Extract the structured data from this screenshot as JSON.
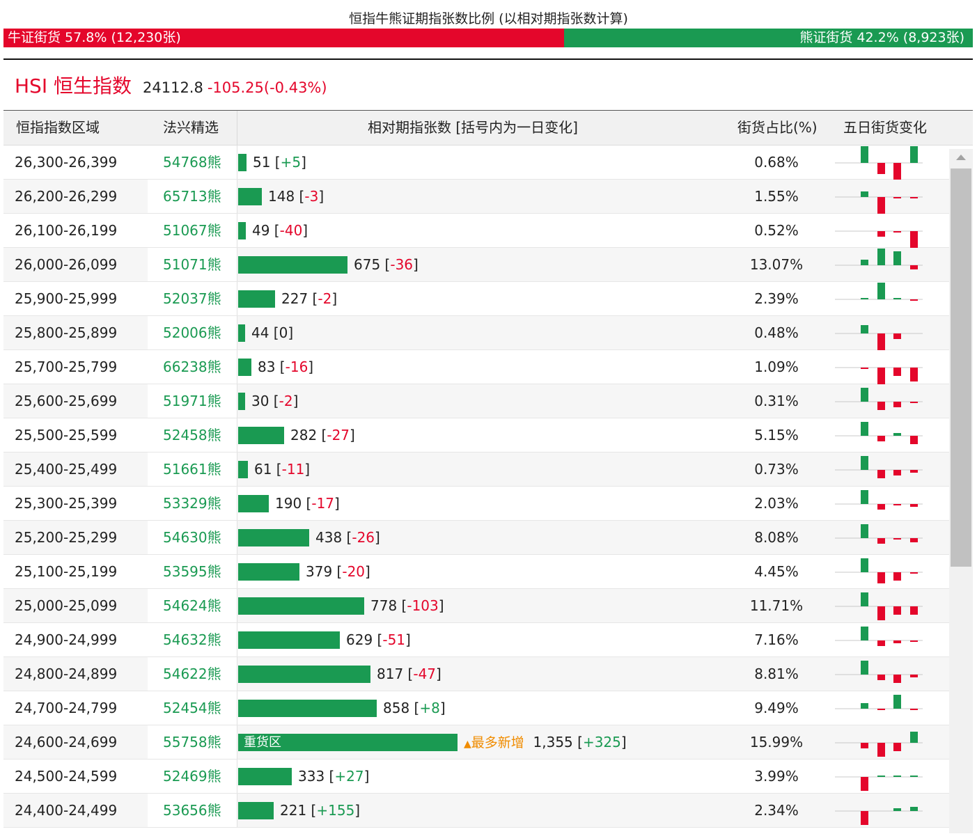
{
  "title": "恒指牛熊证期指张数比例 (以相对期指张数计算)",
  "ratio": {
    "bull_label": "牛证街货 57.8% (12,230张)",
    "bear_label": "熊证街货 42.2% (8,923张)",
    "bull_pct": 57.8,
    "bull_color": "#e4062b",
    "bear_color": "#1a9a52"
  },
  "index": {
    "name": "HSI 恒生指数",
    "price": "24112.8",
    "change": "-105.25(-0.43%)"
  },
  "table": {
    "headers": {
      "range": "恒指指数区域",
      "pick": "法兴精选",
      "contracts": "相对期指张数 [括号内为一日变化]",
      "share": "街货占比(%)",
      "five_day": "五日街货变化"
    },
    "max_contracts": 1355,
    "rows": [
      {
        "range": "26,300-26,399",
        "code": "54768熊",
        "contracts": 51,
        "contracts_text": "51",
        "delta": "+5",
        "share": "0.68%",
        "five_day": [
          3,
          0,
          -2,
          -3,
          3
        ]
      },
      {
        "range": "26,200-26,299",
        "code": "65713熊",
        "contracts": 148,
        "contracts_text": "148",
        "delta": "-3",
        "share": "1.55%",
        "five_day": [
          1,
          0,
          -3,
          -0.3,
          -0.3
        ]
      },
      {
        "range": "26,100-26,199",
        "code": "51067熊",
        "contracts": 49,
        "contracts_text": "49",
        "delta": "-40",
        "share": "0.52%",
        "five_day": [
          0,
          0,
          -1,
          -0.3,
          -3
        ]
      },
      {
        "range": "26,000-26,099",
        "code": "51071熊",
        "contracts": 675,
        "contracts_text": "675",
        "delta": "-36",
        "share": "13.07%",
        "five_day": [
          1,
          0,
          3,
          2.5,
          -0.8
        ]
      },
      {
        "range": "25,900-25,999",
        "code": "52037熊",
        "contracts": 227,
        "contracts_text": "227",
        "delta": "-2",
        "share": "2.39%",
        "five_day": [
          0.2,
          0,
          3,
          0.2,
          -0.2
        ]
      },
      {
        "range": "25,800-25,899",
        "code": "52006熊",
        "contracts": 44,
        "contracts_text": "44",
        "delta": "0",
        "share": "0.48%",
        "five_day": [
          1.5,
          0,
          -3,
          -1,
          0
        ]
      },
      {
        "range": "25,700-25,799",
        "code": "66238熊",
        "contracts": 83,
        "contracts_text": "83",
        "delta": "-16",
        "share": "1.09%",
        "five_day": [
          -0.3,
          0,
          -3,
          -1.5,
          -2.5
        ]
      },
      {
        "range": "25,600-25,699",
        "code": "51971熊",
        "contracts": 30,
        "contracts_text": "30",
        "delta": "-2",
        "share": "0.31%",
        "five_day": [
          2.5,
          0,
          -1.5,
          -1,
          -0.3
        ]
      },
      {
        "range": "25,500-25,599",
        "code": "52458熊",
        "contracts": 282,
        "contracts_text": "282",
        "delta": "-27",
        "share": "5.15%",
        "five_day": [
          2.5,
          0,
          -1,
          0.5,
          -1.5
        ]
      },
      {
        "range": "25,400-25,499",
        "code": "51661熊",
        "contracts": 61,
        "contracts_text": "61",
        "delta": "-11",
        "share": "0.73%",
        "five_day": [
          2.5,
          0,
          -1.5,
          -1,
          -0.5
        ]
      },
      {
        "range": "25,300-25,399",
        "code": "53329熊",
        "contracts": 190,
        "contracts_text": "190",
        "delta": "-17",
        "share": "2.03%",
        "five_day": [
          2.5,
          0,
          -1,
          -0.3,
          -0.5
        ]
      },
      {
        "range": "25,200-25,299",
        "code": "54630熊",
        "contracts": 438,
        "contracts_text": "438",
        "delta": "-26",
        "share": "8.08%",
        "five_day": [
          2.5,
          0,
          -1,
          -0.3,
          -0.8
        ]
      },
      {
        "range": "25,100-25,199",
        "code": "53595熊",
        "contracts": 379,
        "contracts_text": "379",
        "delta": "-20",
        "share": "4.45%",
        "five_day": [
          2.5,
          0,
          -2,
          -1.5,
          -0.3
        ]
      },
      {
        "range": "25,000-25,099",
        "code": "54624熊",
        "contracts": 778,
        "contracts_text": "778",
        "delta": "-103",
        "share": "11.71%",
        "five_day": [
          2.5,
          0,
          -2.5,
          -1.5,
          -1.5
        ]
      },
      {
        "range": "24,900-24,999",
        "code": "54632熊",
        "contracts": 629,
        "contracts_text": "629",
        "delta": "-51",
        "share": "7.16%",
        "five_day": [
          2.5,
          0,
          -1,
          -0.5,
          -0.3
        ]
      },
      {
        "range": "24,800-24,899",
        "code": "54622熊",
        "contracts": 817,
        "contracts_text": "817",
        "delta": "-47",
        "share": "8.81%",
        "five_day": [
          2.5,
          0,
          -1,
          -1.5,
          -0.5
        ]
      },
      {
        "range": "24,700-24,799",
        "code": "52454熊",
        "contracts": 858,
        "contracts_text": "858",
        "delta": "+8",
        "share": "9.49%",
        "five_day": [
          1,
          0,
          -0.3,
          2.5,
          -0.3
        ]
      },
      {
        "range": "24,600-24,699",
        "code": "55758熊",
        "contracts": 1355,
        "contracts_text": "1,355",
        "delta": "+325",
        "share": "15.99%",
        "five_day": [
          -1,
          0,
          -2.5,
          -1.5,
          2
        ],
        "badge": "重货区",
        "hot": "最多新增"
      },
      {
        "range": "24,500-24,599",
        "code": "52469熊",
        "contracts": 333,
        "contracts_text": "333",
        "delta": "+27",
        "share": "3.99%",
        "five_day": [
          -2.5,
          0,
          0.3,
          0.3,
          0.3
        ]
      },
      {
        "range": "24,400-24,499",
        "code": "53656熊",
        "contracts": 221,
        "contracts_text": "221",
        "delta": "+155",
        "share": "2.34%",
        "five_day": [
          -2.5,
          0,
          0,
          0.5,
          0.8
        ]
      }
    ]
  }
}
